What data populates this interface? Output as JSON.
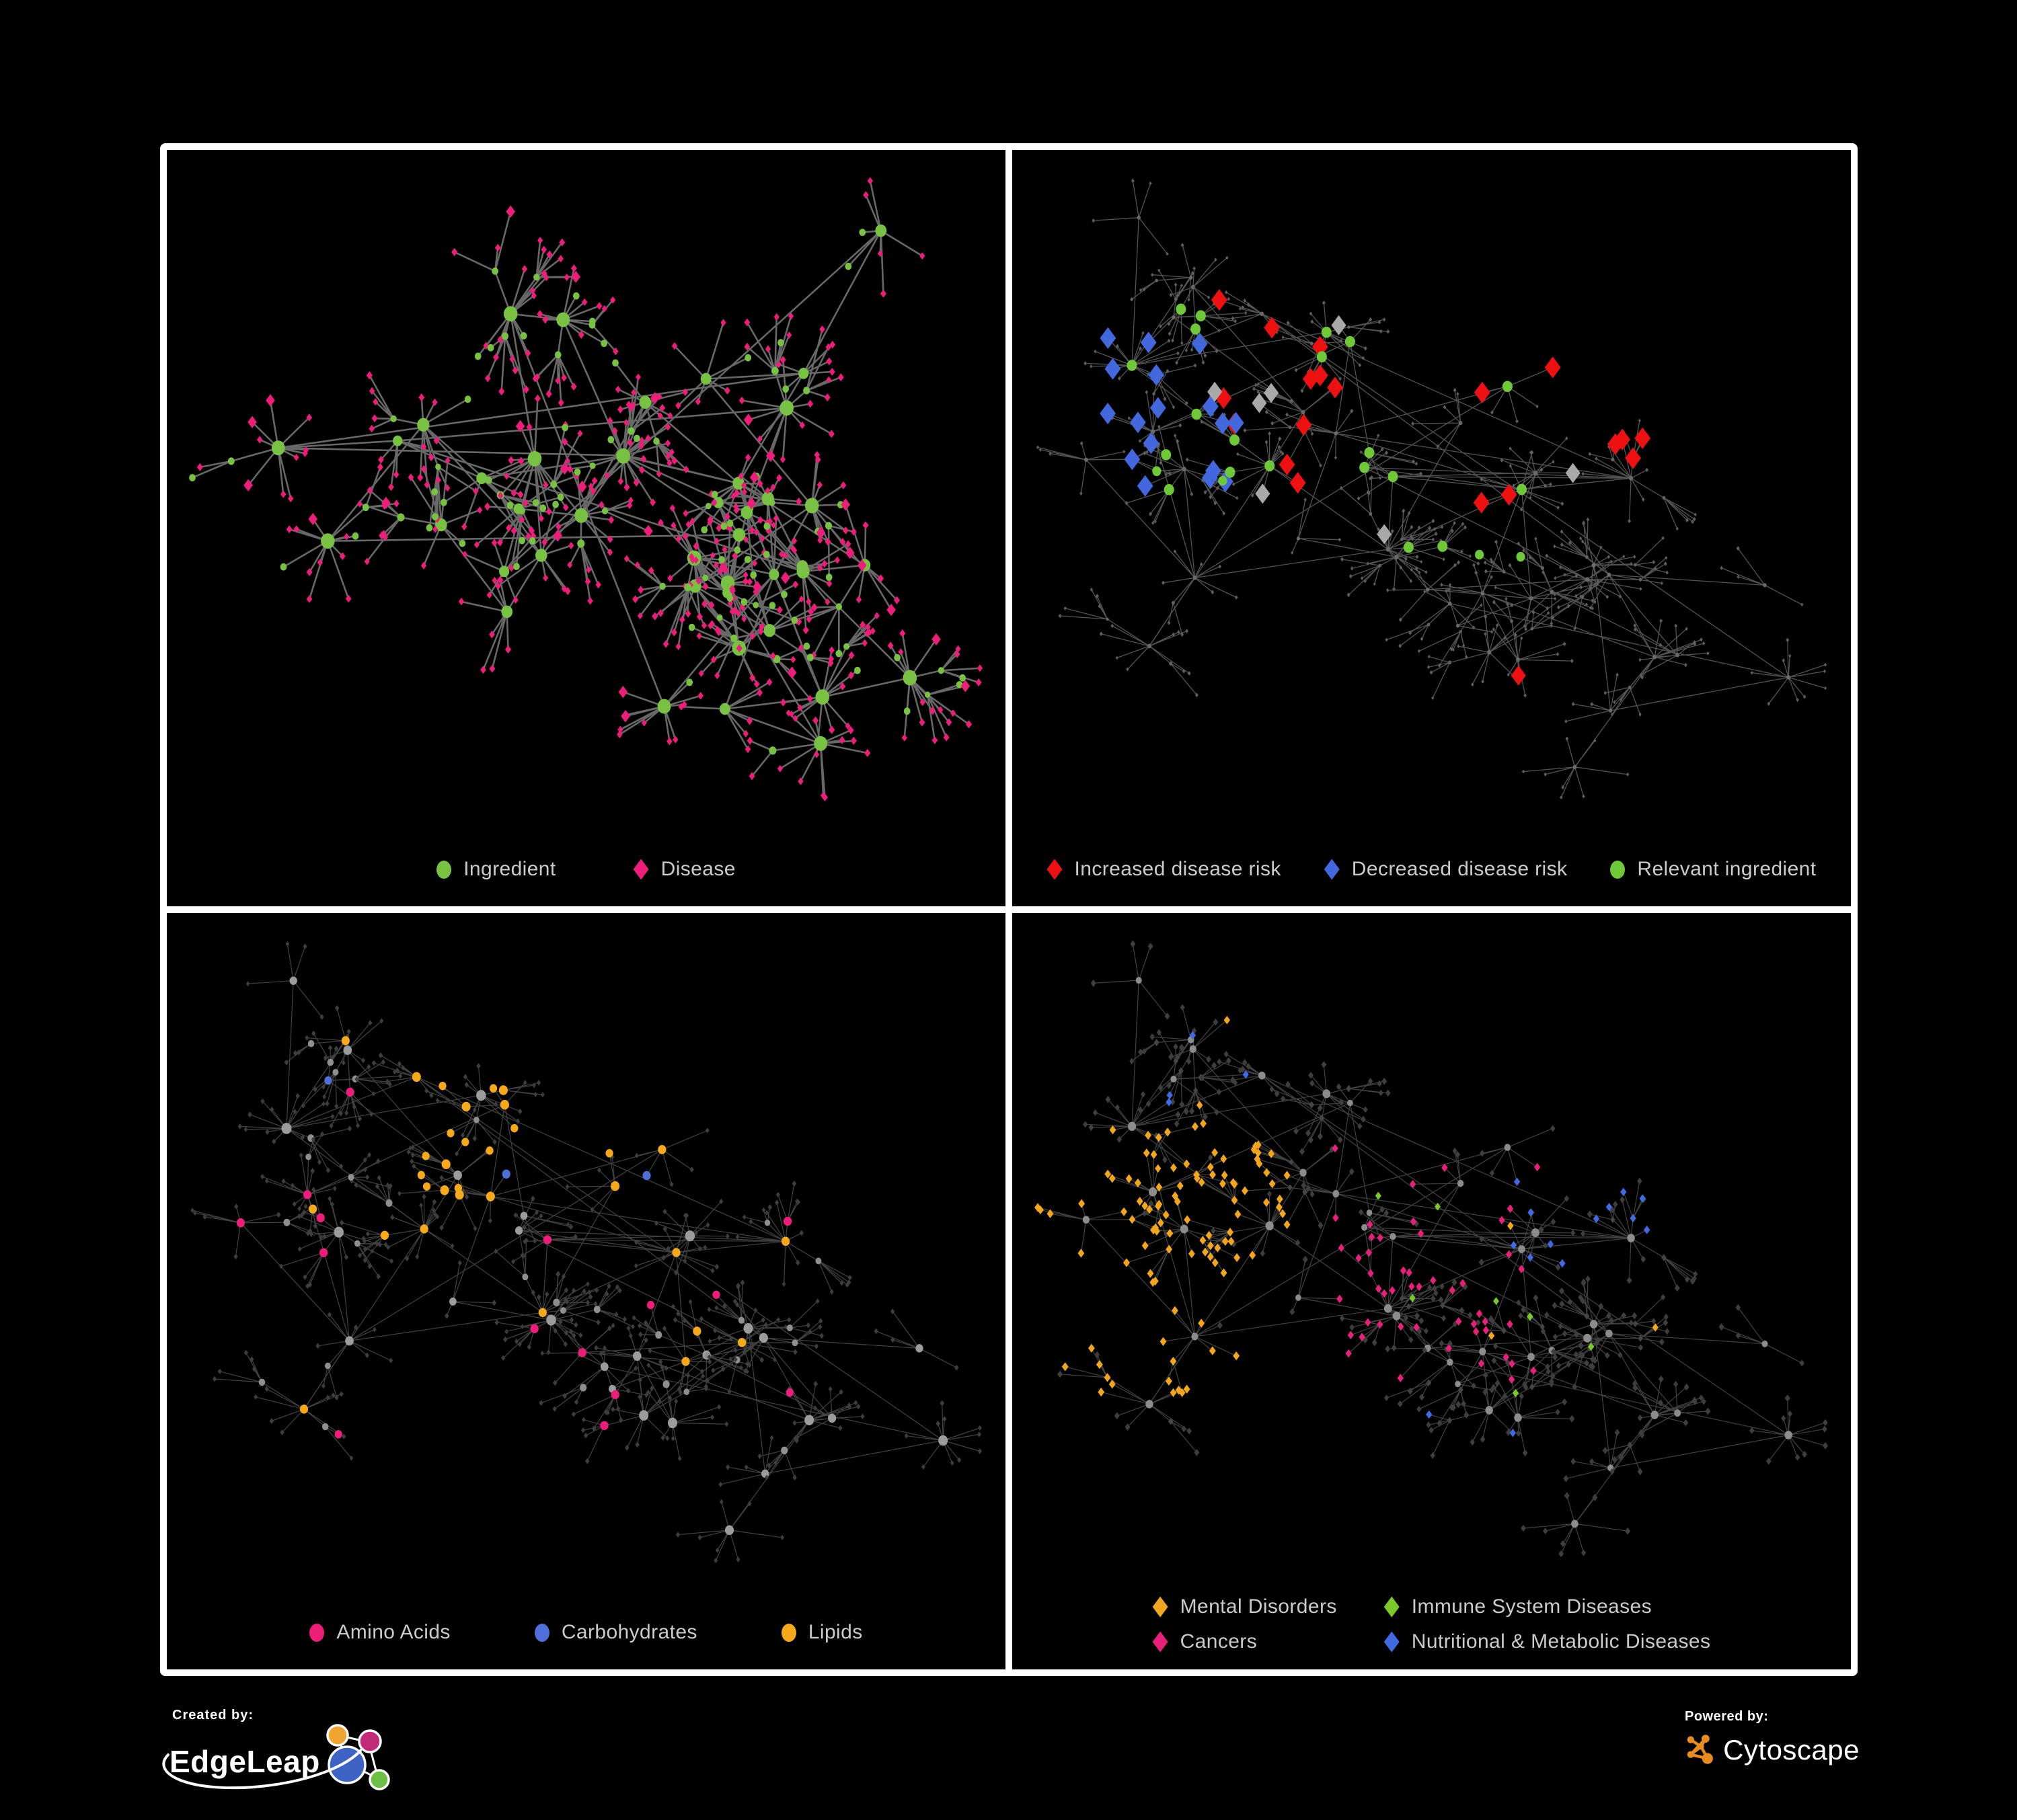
{
  "page": {
    "background": "#000000",
    "frame_border_color": "#ffffff",
    "panel_background": "#000000",
    "legend_text_color": "#cbcbcb"
  },
  "panels": [
    {
      "name": "ingredient-disease-network",
      "legend": [
        {
          "label": "Ingredient",
          "shape": "circle",
          "color": "#79C143"
        },
        {
          "label": "Disease",
          "shape": "diamond",
          "color": "#EC1E79"
        }
      ],
      "network": {
        "seed": 11,
        "style_seed": 21,
        "clusters": 42,
        "arm_min": 60,
        "arm_max": 185,
        "leaf_min": 4,
        "leaf_max": 14,
        "leaf_r_min": 20,
        "leaf_r_max": 58,
        "sub_hub_p": 0.12,
        "extra_edges": 16,
        "edge": {
          "color": "#6E6E6E",
          "width": 2.6,
          "opacity": 0.95
        },
        "roles": {
          "hub": {
            "shape": "circle",
            "color": "#79C143",
            "size_min": 6,
            "size_max": 11
          },
          "mid": {
            "shape": "circle",
            "color": "#79C143",
            "size_min": 4.5,
            "size_max": 6
          },
          "leaf": {
            "shape": "diamond",
            "color": "#EC1E79",
            "size_min": 4.6,
            "size_max": 5.4
          }
        },
        "overrides": [
          {
            "roles": [
              "leaf"
            ],
            "p": 0.12,
            "shape": "circle",
            "color": "#79C143",
            "size": 5.2
          },
          {
            "roles": [
              "leaf"
            ],
            "p": 0.09,
            "shape": "diamond",
            "color": "#EC1E79",
            "size": 8
          }
        ]
      }
    },
    {
      "name": "disease-risk-network",
      "legend": [
        {
          "label": "Increased disease risk",
          "shape": "diamond",
          "color": "#ED1111"
        },
        {
          "label": "Decreased disease risk",
          "shape": "diamond",
          "color": "#4368DD"
        },
        {
          "label": "Relevant ingredient",
          "shape": "circle",
          "color": "#6FC837"
        }
      ],
      "network": {
        "seed": 7,
        "style_seed": 33,
        "clusters": 44,
        "arm_min": 90,
        "arm_max": 230,
        "leaf_min": 3,
        "leaf_max": 13,
        "leaf_r_min": 20,
        "leaf_r_max": 62,
        "sub_hub_p": 0.13,
        "extra_edges": 14,
        "edge": {
          "color": "#5D5D5D",
          "width": 1.3,
          "opacity": 0.9
        },
        "roles": {
          "hub": {
            "shape": "circle",
            "color": "#6A6A6A",
            "size_min": 2.6,
            "size_max": 3.4
          },
          "mid": {
            "shape": "circle",
            "color": "#626262",
            "size_min": 2.3,
            "size_max": 2.8
          },
          "leaf": {
            "shape": "diamond",
            "color": "#5E5E5E",
            "size_min": 2.4,
            "size_max": 3.0
          }
        },
        "overrides": [
          {
            "roles": [
              "leaf",
              "mid"
            ],
            "region": [
              0.18,
              0.76,
              0.2,
              0.52
            ],
            "p": 0.1,
            "shape": "diamond",
            "color": "#ED1111",
            "size": 14
          },
          {
            "roles": [
              "leaf"
            ],
            "region": [
              0.6,
              0.84,
              0.68,
              0.92
            ],
            "p": 0.06,
            "shape": "diamond",
            "color": "#ED1111",
            "size": 13
          },
          {
            "roles": [
              "leaf",
              "mid"
            ],
            "region": [
              0.06,
              0.28,
              0.26,
              0.52
            ],
            "p": 0.15,
            "shape": "diamond",
            "color": "#4368DD",
            "size": 14
          },
          {
            "roles": [
              "leaf"
            ],
            "region": [
              0.84,
              0.97,
              0.2,
              0.34
            ],
            "p": 0.25,
            "shape": "diamond",
            "color": "#4368DD",
            "size": 13
          },
          {
            "roles": [
              "leaf",
              "mid"
            ],
            "region": [
              0.16,
              0.72,
              0.22,
              0.56
            ],
            "p": 0.04,
            "shape": "diamond",
            "color": "#A9A9A9",
            "size": 13
          },
          {
            "roles": [
              "hub",
              "mid"
            ],
            "region": [
              0.1,
              0.62,
              0.2,
              0.58
            ],
            "p": 0.5,
            "shape": "circle",
            "color": "#6FC837",
            "size": 8
          },
          {
            "roles": [
              "leaf"
            ],
            "region": [
              0.1,
              0.62,
              0.22,
              0.6
            ],
            "p": 0.02,
            "shape": "circle",
            "color": "#6FC837",
            "size": 7
          }
        ]
      }
    },
    {
      "name": "nutrient-category-network",
      "legend": [
        {
          "label": "Amino Acids",
          "shape": "circle",
          "color": "#EC1E79"
        },
        {
          "label": "Carbohydrates",
          "shape": "circle",
          "color": "#4E70D8"
        },
        {
          "label": "Lipids",
          "shape": "circle",
          "color": "#F7A91C"
        }
      ],
      "network": {
        "seed": 7,
        "style_seed": 55,
        "clusters": 44,
        "arm_min": 90,
        "arm_max": 230,
        "leaf_min": 3,
        "leaf_max": 13,
        "leaf_r_min": 20,
        "leaf_r_max": 62,
        "sub_hub_p": 0.13,
        "extra_edges": 14,
        "edge": {
          "color": "#6F6F6F",
          "width": 1.2,
          "opacity": 0.6
        },
        "roles": {
          "hub": {
            "shape": "circle",
            "color": "#9C9C9C",
            "size_min": 5,
            "size_max": 8
          },
          "mid": {
            "shape": "circle",
            "color": "#8F8F8F",
            "size_min": 4.5,
            "size_max": 5.5
          },
          "leaf": {
            "shape": "diamond",
            "color": "#3D3D3D",
            "size_min": 3.4,
            "size_max": 3.9
          }
        },
        "overrides": [
          {
            "roles": [
              "hub",
              "mid"
            ],
            "region": [
              0.27,
              0.62,
              0.1,
              0.42
            ],
            "p": 0.6,
            "shape": "circle",
            "color": "#F7A91C",
            "size": 7
          },
          {
            "roles": [
              "leaf"
            ],
            "region": [
              0.3,
              0.58,
              0.12,
              0.4
            ],
            "p": 0.3,
            "shape": "circle",
            "color": "#F7A91C",
            "size": 6
          },
          {
            "roles": [
              "hub",
              "mid",
              "leaf"
            ],
            "region": [
              0.3,
              0.58,
              0.12,
              0.4
            ],
            "p": 0.1,
            "shape": "circle",
            "color": "#4E70D8",
            "size": 6.5
          },
          {
            "roles": [
              "hub",
              "mid"
            ],
            "p": 0.12,
            "shape": "circle",
            "color": "#F7A91C",
            "size": 6.5
          },
          {
            "roles": [
              "hub",
              "mid"
            ],
            "p": 0.1,
            "shape": "circle",
            "color": "#EC1E79",
            "size": 6.5
          },
          {
            "roles": [
              "hub",
              "mid"
            ],
            "p": 0.03,
            "shape": "circle",
            "color": "#4E70D8",
            "size": 6
          },
          {
            "roles": [
              "leaf"
            ],
            "p": 0.012,
            "shape": "circle",
            "color": "#EC1E79",
            "size": 6
          }
        ]
      }
    },
    {
      "name": "disease-category-network",
      "legend": [
        {
          "label": "Mental Disorders",
          "shape": "diamond",
          "color": "#F2A51F"
        },
        {
          "label": "Immune System Diseases",
          "shape": "diamond",
          "color": "#7AC929"
        },
        {
          "label": "Cancers",
          "shape": "diamond",
          "color": "#E7217A"
        },
        {
          "label": "Nutritional & Metabolic Diseases",
          "shape": "diamond",
          "color": "#4169E1"
        }
      ],
      "network": {
        "seed": 7,
        "style_seed": 77,
        "clusters": 44,
        "arm_min": 90,
        "arm_max": 230,
        "leaf_min": 3,
        "leaf_max": 13,
        "leaf_r_min": 20,
        "leaf_r_max": 62,
        "sub_hub_p": 0.13,
        "extra_edges": 14,
        "edge": {
          "color": "#787878",
          "width": 1.2,
          "opacity": 0.55
        },
        "roles": {
          "hub": {
            "shape": "circle",
            "color": "#8C8C8C",
            "size_min": 4,
            "size_max": 6.5
          },
          "mid": {
            "shape": "diamond",
            "color": "#454545",
            "size_min": 4.2,
            "size_max": 4.8
          },
          "leaf": {
            "shape": "diamond",
            "color": "#3E3E3E",
            "size_min": 4.2,
            "size_max": 4.8
          }
        },
        "overrides": [
          {
            "roles": [
              "leaf",
              "mid"
            ],
            "region": [
              0.03,
              0.33,
              0.3,
              0.7
            ],
            "p": 0.8,
            "shape": "diamond",
            "color": "#F2A51F",
            "size": 5.8
          },
          {
            "roles": [
              "leaf",
              "mid"
            ],
            "region": [
              0.36,
              0.63,
              0.33,
              0.68
            ],
            "p": 0.45,
            "shape": "diamond",
            "color": "#E7217A",
            "size": 5.5
          },
          {
            "roles": [
              "leaf",
              "mid"
            ],
            "region": [
              0.58,
              0.97,
              0.06,
              0.52
            ],
            "p": 0.42,
            "shape": "diamond",
            "color": "#4169E1",
            "size": 5.5
          },
          {
            "roles": [
              "leaf"
            ],
            "region": [
              0.05,
              0.35,
              0.04,
              0.28
            ],
            "p": 0.1,
            "shape": "diamond",
            "color": "#4169E1",
            "size": 5.5
          },
          {
            "roles": [
              "leaf"
            ],
            "region": [
              0.3,
              0.62,
              0.7,
              0.95
            ],
            "p": 0.1,
            "shape": "diamond",
            "color": "#4169E1",
            "size": 5.5
          },
          {
            "roles": [
              "leaf"
            ],
            "region": [
              0.8,
              0.98,
              0.12,
              0.3
            ],
            "p": 0.3,
            "shape": "diamond",
            "color": "#E7217A",
            "size": 5.5
          },
          {
            "roles": [
              "leaf",
              "mid"
            ],
            "region": [
              0.25,
              0.72,
              0.28,
              0.72
            ],
            "p": 0.03,
            "shape": "diamond",
            "color": "#7AC929",
            "size": 5.5
          },
          {
            "roles": [
              "leaf"
            ],
            "p": 0.015,
            "shape": "diamond",
            "color": "#F2A51F",
            "size": 5.5
          },
          {
            "roles": [
              "leaf"
            ],
            "p": 0.006,
            "shape": "diamond",
            "color": "#7AC929",
            "size": 5.2
          }
        ]
      }
    }
  ],
  "footer": {
    "created_by_label": "Created by:",
    "created_by_brand": "EdgeLeap",
    "powered_by_label": "Powered by:",
    "powered_by_brand": "Cytoscape",
    "edgeleap_logo_colors": {
      "orange": "#F0A32F",
      "magenta": "#C02A78",
      "blue": "#3E63C4",
      "green": "#6CBE45",
      "stroke": "#ffffff"
    },
    "cytoscape_logo_color": "#E98C1F"
  }
}
